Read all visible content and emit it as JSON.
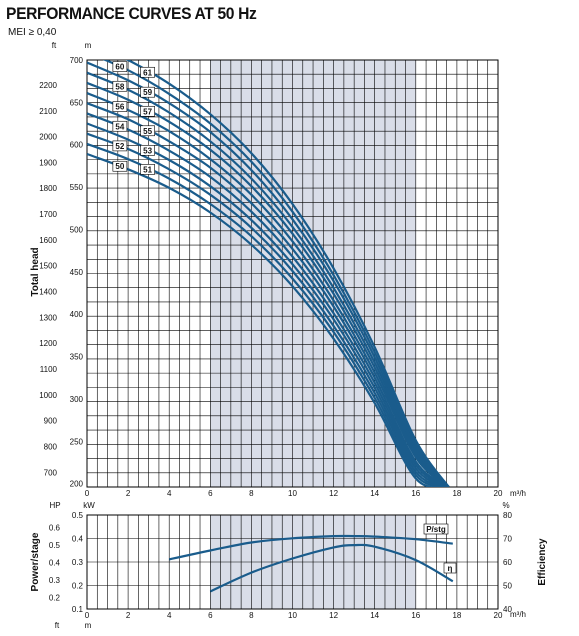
{
  "header": {
    "title": "PERFORMANCE CURVES AT 50 Hz",
    "mei": "MEI ≥ 0,40"
  },
  "chart_data": [
    {
      "type": "line",
      "ylabel": "Total head",
      "x_unit": "m³/h",
      "y_unit_left": "ft",
      "y_unit_right": "m",
      "xlim": [
        0,
        20
      ],
      "ylim": [
        196,
        700
      ],
      "x_ticks": [
        "0",
        "2",
        "4",
        "6",
        "8",
        "10",
        "12",
        "14",
        "16",
        "18",
        "20"
      ],
      "y_ticks_m": [
        "700",
        "650",
        "600",
        "550",
        "500",
        "450",
        "400",
        "350",
        "300",
        "250",
        "200"
      ],
      "y_ticks_ft": [
        "2200",
        "2100",
        "2000",
        "1900",
        "1800",
        "1700",
        "1600",
        "1500",
        "1400",
        "1300",
        "1200",
        "1100",
        "1000",
        "900",
        "800",
        "700"
      ],
      "shaded_range": [
        6,
        16
      ],
      "grid": true,
      "colors": {
        "curve": "#1a5c8c",
        "shade": "#d9dde8",
        "grid": "#000000"
      },
      "flow": [
        0,
        2,
        4,
        6,
        8,
        10,
        12,
        14,
        16,
        17.6
      ],
      "series": [
        {
          "name": "61",
          "values": [
            722,
            700,
            672,
            636,
            590,
            530,
            454,
            361,
            251,
            196
          ]
        },
        {
          "name": "60",
          "values": [
            709,
            688,
            660,
            625,
            580,
            521,
            446,
            355,
            247,
            196
          ]
        },
        {
          "name": "59",
          "values": [
            697,
            676,
            649,
            615,
            570,
            512,
            439,
            349,
            243,
            196
          ]
        },
        {
          "name": "58",
          "values": [
            685,
            665,
            638,
            604,
            560,
            503,
            431,
            343,
            239,
            196
          ]
        },
        {
          "name": "57",
          "values": [
            673,
            653,
            627,
            594,
            551,
            495,
            424,
            337,
            235,
            196
          ]
        },
        {
          "name": "56",
          "values": [
            661,
            641,
            616,
            583,
            541,
            486,
            416,
            331,
            231,
            196
          ]
        },
        {
          "name": "55",
          "values": [
            649,
            630,
            604,
            573,
            531,
            477,
            409,
            325,
            226,
            196
          ]
        },
        {
          "name": "54",
          "values": [
            637,
            618,
            593,
            562,
            521,
            468,
            401,
            319,
            222,
            196
          ]
        },
        {
          "name": "53",
          "values": [
            625,
            606,
            582,
            551,
            511,
            459,
            394,
            313,
            218,
            196
          ]
        },
        {
          "name": "52",
          "values": [
            613,
            595,
            571,
            541,
            502,
            451,
            386,
            307,
            214,
            196
          ]
        },
        {
          "name": "51",
          "values": [
            601,
            583,
            560,
            530,
            492,
            442,
            379,
            301,
            210,
            196
          ]
        },
        {
          "name": "50",
          "values": [
            589,
            571,
            549,
            520,
            482,
            433,
            371,
            295,
            206,
            196
          ]
        }
      ]
    },
    {
      "type": "line",
      "ylabel_left": "Power/stage",
      "ylabel_right": "Efficiency",
      "x_unit": "m³/h",
      "y_unit_left_hp": "HP",
      "y_unit_left_kw": "kW",
      "y_unit_right": "%",
      "xlim": [
        0,
        20
      ],
      "ylim_kw": [
        0.1,
        0.5
      ],
      "ylim_eff": [
        40,
        80
      ],
      "x_ticks": [
        "0",
        "2",
        "4",
        "6",
        "8",
        "10",
        "12",
        "14",
        "16",
        "18",
        "20"
      ],
      "hp_ticks": [
        "0.6",
        "0.5",
        "0.4",
        "0.3",
        "0.2"
      ],
      "kw_ticks": [
        "0.5",
        "0.4",
        "0.3",
        "0.2",
        "0.1"
      ],
      "eff_ticks": [
        "80",
        "70",
        "60",
        "50",
        "40"
      ],
      "shaded_range": [
        6,
        16
      ],
      "grid": true,
      "series": [
        {
          "name": "P/stg",
          "axis": "kw",
          "x": [
            4,
            6,
            8,
            10,
            12,
            13,
            14,
            16,
            17.8
          ],
          "values": [
            0.311,
            0.349,
            0.383,
            0.401,
            0.41,
            0.41,
            0.408,
            0.397,
            0.378
          ]
        },
        {
          "name": "η",
          "axis": "eff",
          "x": [
            6,
            8,
            10,
            12,
            13,
            14,
            16,
            17.8
          ],
          "values": [
            47.5,
            55.5,
            61.5,
            66.2,
            67.2,
            66.5,
            60.8,
            51.8
          ]
        }
      ]
    }
  ]
}
